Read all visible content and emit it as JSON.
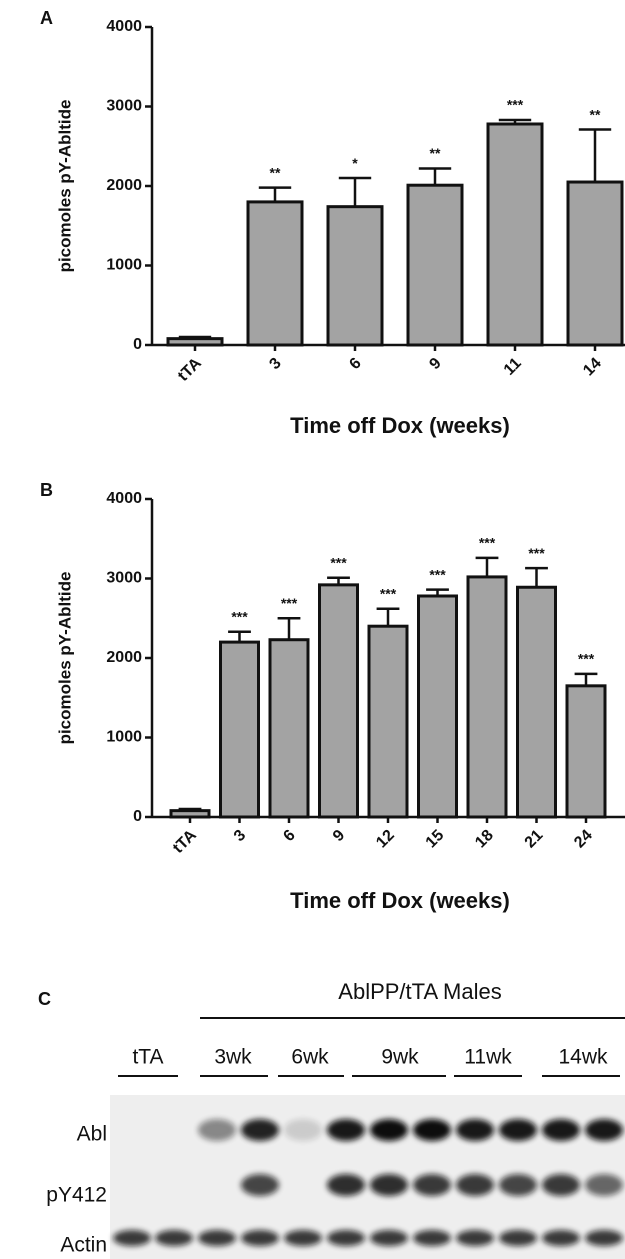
{
  "chart_data": [
    {
      "type": "bar",
      "panel_label": "A",
      "y_label": "picomoles pY-Abltide",
      "x_label": "Time off Dox (weeks)",
      "categories": [
        "tTA",
        "3",
        "6",
        "9",
        "11",
        "14"
      ],
      "values": [
        80,
        1800,
        1740,
        2010,
        2780,
        2050
      ],
      "errors": [
        20,
        180,
        360,
        210,
        50,
        660
      ],
      "significance": [
        null,
        "**",
        "*",
        "**",
        "***",
        "**"
      ],
      "color": "#a3a3a3",
      "ylim": [
        0,
        4000
      ],
      "yticks": [
        0,
        1000,
        2000,
        3000,
        4000
      ]
    },
    {
      "type": "bar",
      "panel_label": "B",
      "y_label": "picomoles pY-Abltide",
      "x_label": "Time off Dox (weeks)",
      "categories": [
        "tTA",
        "3",
        "6",
        "9",
        "12",
        "15",
        "18",
        "21",
        "24"
      ],
      "values": [
        80,
        2200,
        2230,
        2920,
        2400,
        2780,
        3020,
        2890,
        1650
      ],
      "errors": [
        20,
        130,
        270,
        90,
        220,
        80,
        240,
        240,
        150
      ],
      "significance": [
        null,
        "***",
        "***",
        "***",
        "***",
        "***",
        "***",
        "***",
        "***"
      ],
      "color": "#a3a3a3",
      "ylim": [
        0,
        4000
      ],
      "yticks": [
        0,
        1000,
        2000,
        3000,
        4000
      ]
    }
  ],
  "blot": {
    "panel_label": "C",
    "group_label": "AblPP/tTA  Males",
    "lanes": [
      "tTA",
      "3wk",
      "6wk",
      "9wk",
      "11wk",
      "14wk"
    ],
    "rows": [
      "Abl",
      "pY412",
      "Actin"
    ]
  }
}
